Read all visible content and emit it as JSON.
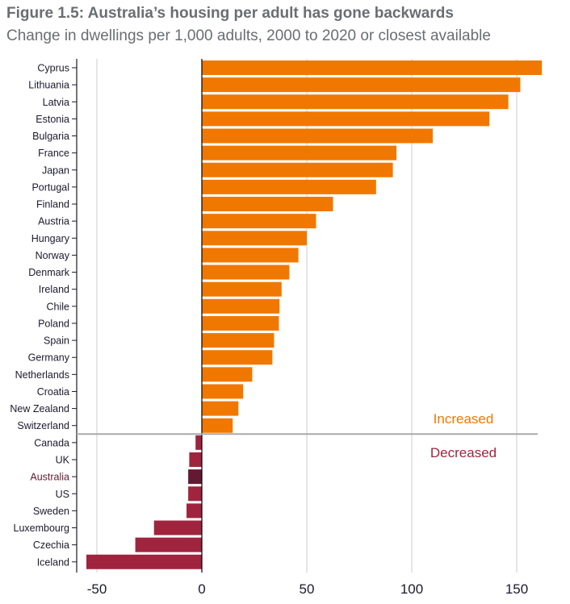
{
  "chart_data": {
    "type": "bar",
    "orientation": "horizontal",
    "title": "Figure 1.5: Australia’s housing per adult has gone backwards",
    "subtitle": "Change in dwellings per 1,000 adults, 2000 to 2020 or closest available",
    "xlim": [
      -60,
      165
    ],
    "xticks": [
      -50,
      0,
      50,
      100,
      150
    ],
    "grid": "vertical",
    "categories": [
      "Cyprus",
      "Lithuania",
      "Latvia",
      "Estonia",
      "Bulgaria",
      "France",
      "Japan",
      "Portugal",
      "Finland",
      "Austria",
      "Hungary",
      "Norway",
      "Denmark",
      "Ireland",
      "Chile",
      "Poland",
      "Spain",
      "Germany",
      "Netherlands",
      "Croatia",
      "New Zealand",
      "Switzerland",
      "Canada",
      "UK",
      "Australia",
      "US",
      "Sweden",
      "Luxembourg",
      "Czechia",
      "Iceland"
    ],
    "values": [
      162,
      151.7,
      146,
      137,
      110,
      92.7,
      91,
      83,
      62.5,
      54.4,
      50,
      46,
      41.7,
      38,
      37,
      36.7,
      34.4,
      33.6,
      24,
      19.7,
      17.4,
      14.7,
      -3,
      -6,
      -6.5,
      -6.5,
      -7.3,
      -22.8,
      -31.7,
      -55
    ],
    "highlight": "Australia",
    "annotations": {
      "increased": "Increased",
      "decreased": "Decreased"
    },
    "colors": {
      "increased": "#f07800",
      "decreased": "#a0243e",
      "highlight": "#621a32",
      "highlight_label": "#621a32",
      "text": "#1a1a2e"
    }
  }
}
